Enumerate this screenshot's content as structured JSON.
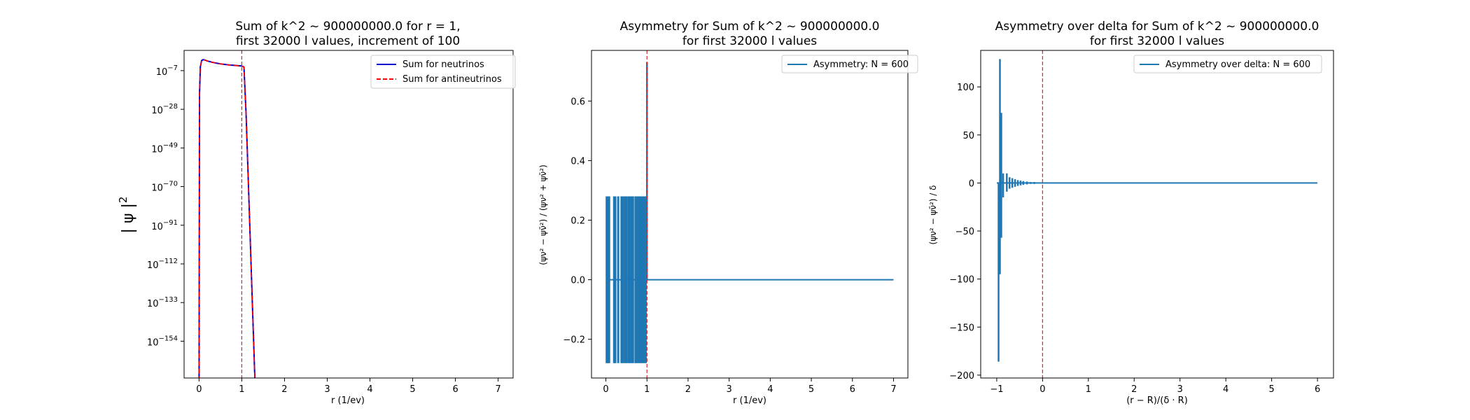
{
  "chart_data": [
    {
      "type": "line",
      "title": [
        "Sum of k^2 ~ 900000000.0 for r = 1,",
        "first 32000 l values, increment of 100"
      ],
      "xlabel": "r (1/ev)",
      "ylabel": "| ψ |",
      "ylabel_superscript": "2",
      "yscale": "log",
      "xlim": [
        -0.35,
        7.35
      ],
      "ylim_log10": [
        -174,
        4
      ],
      "xticks": [
        "0",
        "1",
        "2",
        "3",
        "4",
        "5",
        "6",
        "7"
      ],
      "yticks": [
        {
          "base": "10",
          "exp": "−7"
        },
        {
          "base": "10",
          "exp": "−28"
        },
        {
          "base": "10",
          "exp": "−49"
        },
        {
          "base": "10",
          "exp": "−70"
        },
        {
          "base": "10",
          "exp": "−91"
        },
        {
          "base": "10",
          "exp": "−112"
        },
        {
          "base": "10",
          "exp": "−133"
        },
        {
          "base": "10",
          "exp": "−154"
        }
      ],
      "legend_placement": "upper right",
      "vline_x": 1,
      "vline_color": "#d62728",
      "series": [
        {
          "name": "Sum for neutrinos",
          "color": "#0000cc",
          "style": "solid",
          "x": [
            0.0,
            0.01,
            0.03,
            0.06,
            0.1,
            0.2,
            0.3,
            0.4,
            0.5,
            0.6,
            0.7,
            0.8,
            0.9,
            1.0,
            1.05,
            1.1,
            1.2,
            1.3,
            1.32
          ],
          "log10_y": [
            -180,
            -20,
            -5,
            -1.5,
            -1,
            -1.8,
            -2.4,
            -2.9,
            -3.3,
            -3.6,
            -3.9,
            -4.1,
            -4.3,
            -4.5,
            -5,
            -30,
            -100,
            -170,
            -180
          ]
        },
        {
          "name": "Sum for antineutrinos",
          "color": "#ff0000",
          "style": "dashed",
          "x": [
            0.0,
            0.01,
            0.03,
            0.06,
            0.1,
            0.2,
            0.3,
            0.4,
            0.5,
            0.6,
            0.7,
            0.8,
            0.9,
            1.0,
            1.05,
            1.1,
            1.2,
            1.3,
            1.32
          ],
          "log10_y": [
            -180,
            -20,
            -5,
            -1.5,
            -1,
            -1.8,
            -2.4,
            -2.9,
            -3.3,
            -3.6,
            -3.9,
            -4.1,
            -4.3,
            -4.5,
            -5,
            -30,
            -100,
            -170,
            -180
          ]
        }
      ]
    },
    {
      "type": "line",
      "title": [
        "Asymmetry for Sum of k^2 ~ 900000000.0",
        "for first 32000 l values"
      ],
      "xlabel": "r (1/ev)",
      "ylabel": "(ψν² − ψν̄²) / (ψν² + ψν̄²)",
      "xlim": [
        -0.35,
        7.35
      ],
      "ylim": [
        -0.33,
        0.77
      ],
      "xticks": [
        "0",
        "1",
        "2",
        "3",
        "4",
        "5",
        "6",
        "7"
      ],
      "yticks": [
        "−0.2",
        "0.0",
        "0.2",
        "0.4",
        "0.6"
      ],
      "legend_placement": "upper right",
      "vline_x": 1,
      "vline_color": "#d62728",
      "series": [
        {
          "name": "Asymmetry: N = 600",
          "color": "#1f77b4",
          "x_start": 0.0,
          "x_end": 7.0,
          "spike_x": [
            0.02,
            0.05,
            0.08,
            0.2,
            0.23,
            0.3,
            0.38,
            0.41,
            0.46,
            0.5,
            0.55,
            0.58,
            0.63,
            0.66,
            0.72,
            0.75,
            0.8,
            0.84,
            0.88,
            0.92,
            0.97
          ],
          "spike_amp": 0.28,
          "peak_x": 1.0,
          "peak_y": 0.73
        }
      ]
    },
    {
      "type": "line",
      "title": [
        "Asymmetry over delta for Sum of k^2 ~ 900000000.0",
        "for first 32000 l values"
      ],
      "xlabel": "(r − R)/(δ · R)",
      "ylabel": "(ψν² − ψν̄²) / δ",
      "xlim": [
        -1.35,
        6.35
      ],
      "ylim": [
        -203,
        138
      ],
      "xticks": [
        "−1",
        "0",
        "1",
        "2",
        "3",
        "4",
        "5",
        "6"
      ],
      "yticks": [
        "−200",
        "−150",
        "−100",
        "−50",
        "0",
        "50",
        "100"
      ],
      "legend_placement": "upper right",
      "vline_x": 0,
      "vline_color": "#d62728",
      "series": [
        {
          "name": "Asymmetry over delta: N = 600",
          "color": "#1f77b4",
          "x_start": -1.0,
          "x_end": 6.0,
          "spikes": [
            {
              "x": -0.96,
              "lo": -186,
              "hi": 0
            },
            {
              "x": -0.93,
              "lo": -95,
              "hi": 129
            },
            {
              "x": -0.9,
              "lo": -57,
              "hi": 73
            },
            {
              "x": -0.86,
              "lo": -15,
              "hi": 10
            },
            {
              "x": -0.78,
              "lo": -9,
              "hi": 10
            },
            {
              "x": -0.72,
              "lo": -6,
              "hi": 6
            },
            {
              "x": -0.66,
              "lo": -5,
              "hi": 5
            },
            {
              "x": -0.6,
              "lo": -4,
              "hi": 4
            },
            {
              "x": -0.54,
              "lo": -3,
              "hi": 3
            },
            {
              "x": -0.48,
              "lo": -2.5,
              "hi": 2.5
            },
            {
              "x": -0.42,
              "lo": -2,
              "hi": 2
            },
            {
              "x": -0.34,
              "lo": -1.5,
              "hi": 1.5
            },
            {
              "x": -0.26,
              "lo": -1,
              "hi": 1
            },
            {
              "x": -0.18,
              "lo": -1,
              "hi": 1
            },
            {
              "x": -0.1,
              "lo": -0.5,
              "hi": 0.5
            }
          ]
        }
      ]
    }
  ]
}
